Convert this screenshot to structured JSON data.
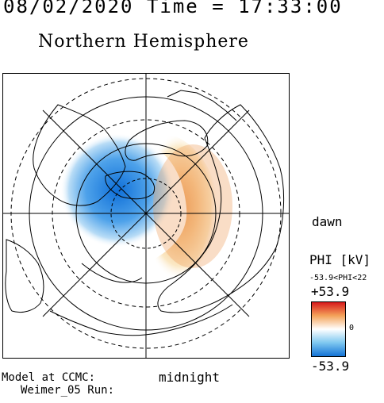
{
  "header": {
    "date_time": "08/02/2020 Time = 17:33:00",
    "title": "Northern Hemisphere"
  },
  "map": {
    "projection": "polar",
    "hemisphere": "north",
    "orientation": {
      "right": "dawn",
      "bottom": "midnight"
    },
    "dawn_label": "dawn",
    "midnight_label": "midnight",
    "features": [
      "latitude-circles",
      "meridians",
      "coastlines",
      "potential-pattern"
    ],
    "pattern": {
      "negative_cell": "dusk / pre-noon",
      "positive_cell": "dawn",
      "colors": {
        "negative": "#1273d6",
        "positive": "#e8914a",
        "neutral": "#ffffff"
      }
    }
  },
  "legend": {
    "label": "PHI [kV]",
    "range_text": "-53.9<PHI<22",
    "max": "+53.9",
    "min": "-53.9",
    "zero": "0",
    "colors": {
      "top": "#d7191c",
      "mid": "#ffffff",
      "bottom": "#1273d6"
    }
  },
  "footer": {
    "model": "Model at CCMC:",
    "run": "Weimer_05 Run:"
  }
}
